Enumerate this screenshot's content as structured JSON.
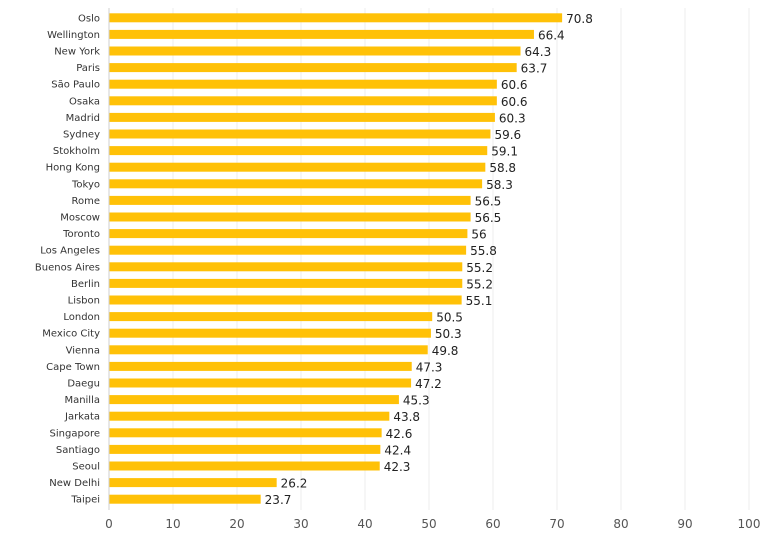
{
  "chart_data": {
    "type": "bar",
    "orientation": "horizontal",
    "title": "",
    "xlabel": "",
    "ylabel": "",
    "xlim": [
      0,
      100
    ],
    "ticks": [
      0,
      10,
      20,
      30,
      40,
      50,
      60,
      70,
      80,
      90,
      100
    ],
    "grid": true,
    "legend": "none",
    "bar_color": "#FFC107",
    "categories": [
      "Oslo",
      "Wellington",
      "New York",
      "Paris",
      "São Paulo",
      "Osaka",
      "Madrid",
      "Sydney",
      "Stokholm",
      "Hong Kong",
      "Tokyo",
      "Rome",
      "Moscow",
      "Toronto",
      "Los Angeles",
      "Buenos Aires",
      "Berlin",
      "Lisbon",
      "London",
      "Mexico City",
      "Vienna",
      "Cape Town",
      "Daegu",
      "Manilla",
      "Jarkata",
      "Singapore",
      "Santiago",
      "Seoul",
      "New Delhi",
      "Taipei"
    ],
    "values": [
      70.8,
      66.4,
      64.3,
      63.7,
      60.6,
      60.6,
      60.3,
      59.6,
      59.1,
      58.8,
      58.3,
      56.5,
      56.5,
      56,
      55.8,
      55.2,
      55.2,
      55.1,
      50.5,
      50.3,
      49.8,
      47.3,
      47.2,
      45.3,
      43.8,
      42.6,
      42.4,
      42.3,
      26.2,
      23.7
    ]
  }
}
